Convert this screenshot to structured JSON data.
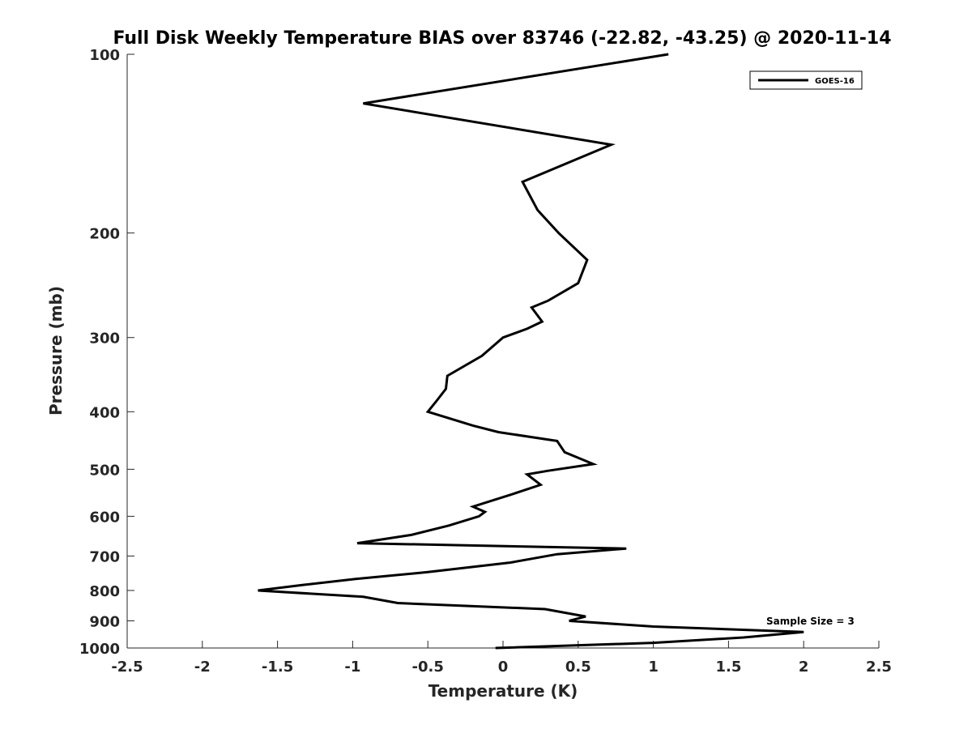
{
  "chart_data": {
    "type": "line",
    "title": "Full Disk Weekly Temperature BIAS over 83746 (-22.82, -43.25) @ 2020-11-14",
    "xlabel": "Temperature (K)",
    "ylabel": "Pressure (mb)",
    "xlim": [
      -2.5,
      2.5
    ],
    "ylim": [
      100,
      1000
    ],
    "y_scale": "log",
    "y_reversed": true,
    "xticks": [
      -2.5,
      -2,
      -1.5,
      -1,
      -0.5,
      0,
      0.5,
      1,
      1.5,
      2,
      2.5
    ],
    "xtick_labels": [
      "-2.5",
      "-2",
      "-1.5",
      "-1",
      "-0.5",
      "0",
      "0.5",
      "1",
      "1.5",
      "2",
      "2.5"
    ],
    "yticks": [
      100,
      200,
      300,
      400,
      500,
      600,
      700,
      800,
      900,
      1000
    ],
    "ytick_labels": [
      "100",
      "200",
      "300",
      "400",
      "500",
      "600",
      "700",
      "800",
      "900",
      "1000"
    ],
    "grid": false,
    "legend_position": "top-right",
    "annotation": "Sample Size = 3",
    "series": [
      {
        "name": "GOES-16",
        "color": "#000000",
        "points": [
          {
            "x": 1.1,
            "y": 100
          },
          {
            "x": -0.93,
            "y": 121
          },
          {
            "x": 0.72,
            "y": 142
          },
          {
            "x": 0.13,
            "y": 164
          },
          {
            "x": 0.23,
            "y": 183
          },
          {
            "x": 0.37,
            "y": 200
          },
          {
            "x": 0.56,
            "y": 222
          },
          {
            "x": 0.5,
            "y": 243
          },
          {
            "x": 0.3,
            "y": 260
          },
          {
            "x": 0.19,
            "y": 267
          },
          {
            "x": 0.26,
            "y": 282
          },
          {
            "x": 0.16,
            "y": 290
          },
          {
            "x": 0.0,
            "y": 300
          },
          {
            "x": -0.14,
            "y": 322
          },
          {
            "x": -0.37,
            "y": 348
          },
          {
            "x": -0.38,
            "y": 366
          },
          {
            "x": -0.44,
            "y": 383
          },
          {
            "x": -0.5,
            "y": 400
          },
          {
            "x": -0.2,
            "y": 422
          },
          {
            "x": -0.03,
            "y": 433
          },
          {
            "x": 0.36,
            "y": 448
          },
          {
            "x": 0.41,
            "y": 468
          },
          {
            "x": 0.6,
            "y": 490
          },
          {
            "x": 0.3,
            "y": 503
          },
          {
            "x": 0.16,
            "y": 510
          },
          {
            "x": 0.25,
            "y": 531
          },
          {
            "x": 0.05,
            "y": 552
          },
          {
            "x": -0.2,
            "y": 578
          },
          {
            "x": -0.12,
            "y": 590
          },
          {
            "x": -0.16,
            "y": 600
          },
          {
            "x": -0.36,
            "y": 622
          },
          {
            "x": -0.61,
            "y": 645
          },
          {
            "x": -0.97,
            "y": 666
          },
          {
            "x": 0.82,
            "y": 680
          },
          {
            "x": 0.36,
            "y": 695
          },
          {
            "x": 0.05,
            "y": 718
          },
          {
            "x": -0.5,
            "y": 745
          },
          {
            "x": -0.98,
            "y": 765
          },
          {
            "x": -1.33,
            "y": 783
          },
          {
            "x": -1.63,
            "y": 800
          },
          {
            "x": -0.93,
            "y": 820
          },
          {
            "x": -0.7,
            "y": 840
          },
          {
            "x": 0.28,
            "y": 860
          },
          {
            "x": 0.55,
            "y": 885
          },
          {
            "x": 0.44,
            "y": 900
          },
          {
            "x": 1.0,
            "y": 920
          },
          {
            "x": 2.0,
            "y": 940
          },
          {
            "x": 1.6,
            "y": 960
          },
          {
            "x": 1.0,
            "y": 980
          },
          {
            "x": -0.05,
            "y": 1000
          }
        ]
      }
    ]
  }
}
